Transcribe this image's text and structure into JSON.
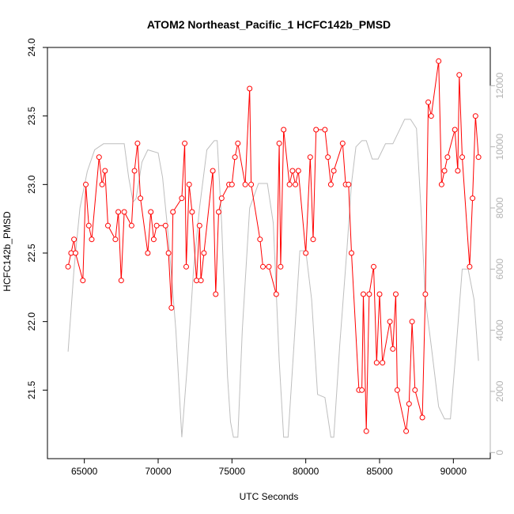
{
  "chart_data": {
    "type": "line",
    "title": "ATOM2 Northeast_Pacific_1 HCFC142b_PMSD",
    "xlabel": "UTC Seconds",
    "ylabel": "HCFC142b_PMSD",
    "xlim": [
      62500,
      92500
    ],
    "ylim": [
      21.0,
      24.0
    ],
    "ylim_right": [
      -200,
      13250
    ],
    "x_ticks": [
      65000,
      70000,
      75000,
      80000,
      85000,
      90000
    ],
    "y_ticks": [
      21.5,
      22.0,
      22.5,
      23.0,
      23.5,
      24.0
    ],
    "y_ticks_right": [
      0,
      2000,
      4000,
      6000,
      8000,
      10000,
      12000
    ],
    "grid": false,
    "series": [
      {
        "color": "#ff0000",
        "axis": "left",
        "markers": "open-circle",
        "points": [
          [
            63900,
            22.4
          ],
          [
            64100,
            22.5
          ],
          [
            64300,
            22.6
          ],
          [
            64400,
            22.5
          ],
          [
            64900,
            22.3
          ],
          [
            65100,
            23.0
          ],
          [
            65300,
            22.7
          ],
          [
            65500,
            22.6
          ],
          [
            66000,
            23.2
          ],
          [
            66200,
            23.0
          ],
          [
            66400,
            23.1
          ],
          [
            66600,
            22.7
          ],
          [
            67100,
            22.6
          ],
          [
            67300,
            22.8
          ],
          [
            67500,
            22.3
          ],
          [
            67700,
            22.8
          ],
          [
            68200,
            22.7
          ],
          [
            68400,
            23.1
          ],
          [
            68600,
            23.3
          ],
          [
            68800,
            22.9
          ],
          [
            69300,
            22.5
          ],
          [
            69500,
            22.8
          ],
          [
            69700,
            22.6
          ],
          [
            69900,
            22.7
          ],
          [
            70500,
            22.7
          ],
          [
            70700,
            22.5
          ],
          [
            70900,
            22.1
          ],
          [
            71000,
            22.8
          ],
          [
            71600,
            22.9
          ],
          [
            71800,
            23.3
          ],
          [
            71900,
            22.4
          ],
          [
            72100,
            23.0
          ],
          [
            72300,
            22.8
          ],
          [
            72600,
            22.3
          ],
          [
            72800,
            22.7
          ],
          [
            72900,
            22.3
          ],
          [
            73100,
            22.5
          ],
          [
            73700,
            23.1
          ],
          [
            73900,
            22.2
          ],
          [
            74100,
            22.8
          ],
          [
            74300,
            22.9
          ],
          [
            74800,
            23.0
          ],
          [
            75000,
            23.0
          ],
          [
            75200,
            23.2
          ],
          [
            75400,
            23.3
          ],
          [
            75900,
            23.0
          ],
          [
            76200,
            23.7
          ],
          [
            76300,
            23.0
          ],
          [
            76900,
            22.6
          ],
          [
            77100,
            22.4
          ],
          [
            77500,
            22.4
          ],
          [
            78000,
            22.2
          ],
          [
            78200,
            23.3
          ],
          [
            78300,
            22.4
          ],
          [
            78500,
            23.4
          ],
          [
            78900,
            23.0
          ],
          [
            79100,
            23.1
          ],
          [
            79300,
            23.0
          ],
          [
            79500,
            23.1
          ],
          [
            80000,
            22.5
          ],
          [
            80300,
            23.2
          ],
          [
            80500,
            22.6
          ],
          [
            80700,
            23.4
          ],
          [
            81300,
            23.4
          ],
          [
            81500,
            23.2
          ],
          [
            81700,
            23.0
          ],
          [
            81900,
            23.1
          ],
          [
            82500,
            23.3
          ],
          [
            82700,
            23.0
          ],
          [
            82900,
            23.0
          ],
          [
            83100,
            22.5
          ],
          [
            83600,
            21.5
          ],
          [
            83800,
            21.5
          ],
          [
            83900,
            22.2
          ],
          [
            84100,
            21.2
          ],
          [
            84300,
            22.2
          ],
          [
            84600,
            22.4
          ],
          [
            84800,
            21.7
          ],
          [
            85000,
            22.2
          ],
          [
            85200,
            21.7
          ],
          [
            85700,
            22.0
          ],
          [
            85900,
            21.8
          ],
          [
            86100,
            22.2
          ],
          [
            86200,
            21.5
          ],
          [
            86800,
            21.2
          ],
          [
            87000,
            21.4
          ],
          [
            87200,
            22.0
          ],
          [
            87400,
            21.5
          ],
          [
            87900,
            21.3
          ],
          [
            88100,
            22.2
          ],
          [
            88300,
            23.6
          ],
          [
            88500,
            23.5
          ],
          [
            89000,
            23.9
          ],
          [
            89200,
            23.0
          ],
          [
            89400,
            23.1
          ],
          [
            89600,
            23.2
          ],
          [
            90100,
            23.4
          ],
          [
            90300,
            23.1
          ],
          [
            90400,
            23.8
          ],
          [
            90600,
            23.2
          ],
          [
            91100,
            22.4
          ],
          [
            91300,
            22.9
          ],
          [
            91500,
            23.5
          ],
          [
            91700,
            23.2
          ]
        ]
      },
      {
        "color": "#bebebe",
        "axis": "right",
        "markers": "none",
        "points": [
          [
            63900,
            3300
          ],
          [
            64300,
            6000
          ],
          [
            64700,
            8000
          ],
          [
            65200,
            9200
          ],
          [
            65700,
            9900
          ],
          [
            66300,
            10100
          ],
          [
            67700,
            10100
          ],
          [
            68000,
            9000
          ],
          [
            68300,
            8200
          ],
          [
            68500,
            8300
          ],
          [
            68900,
            9500
          ],
          [
            69300,
            9900
          ],
          [
            70000,
            9800
          ],
          [
            70300,
            9000
          ],
          [
            70700,
            7000
          ],
          [
            71200,
            4000
          ],
          [
            71600,
            500
          ],
          [
            72000,
            3000
          ],
          [
            72400,
            6000
          ],
          [
            72800,
            8000
          ],
          [
            73300,
            9900
          ],
          [
            73800,
            10200
          ],
          [
            74000,
            10200
          ],
          [
            74300,
            7500
          ],
          [
            74700,
            2500
          ],
          [
            74900,
            1000
          ],
          [
            75100,
            500
          ],
          [
            75400,
            500
          ],
          [
            75700,
            4000
          ],
          [
            76200,
            8000
          ],
          [
            76800,
            8800
          ],
          [
            77400,
            8800
          ],
          [
            77800,
            7500
          ],
          [
            78200,
            3000
          ],
          [
            78500,
            500
          ],
          [
            78800,
            500
          ],
          [
            79200,
            3500
          ],
          [
            79600,
            6600
          ],
          [
            80000,
            6600
          ],
          [
            80400,
            5000
          ],
          [
            80800,
            1900
          ],
          [
            81300,
            1800
          ],
          [
            81700,
            500
          ],
          [
            81900,
            500
          ],
          [
            82300,
            3500
          ],
          [
            82800,
            6700
          ],
          [
            83100,
            8800
          ],
          [
            83400,
            10000
          ],
          [
            83800,
            10200
          ],
          [
            84100,
            10200
          ],
          [
            84500,
            9600
          ],
          [
            84900,
            9600
          ],
          [
            85400,
            10100
          ],
          [
            85900,
            10100
          ],
          [
            86300,
            10500
          ],
          [
            86700,
            10900
          ],
          [
            87100,
            10900
          ],
          [
            87500,
            10600
          ],
          [
            87800,
            8000
          ],
          [
            88100,
            5000
          ],
          [
            88500,
            3500
          ],
          [
            89000,
            1500
          ],
          [
            89400,
            1100
          ],
          [
            89800,
            1100
          ],
          [
            90200,
            3500
          ],
          [
            90600,
            6000
          ],
          [
            91000,
            6000
          ],
          [
            91400,
            5000
          ],
          [
            91700,
            3000
          ]
        ]
      }
    ]
  }
}
